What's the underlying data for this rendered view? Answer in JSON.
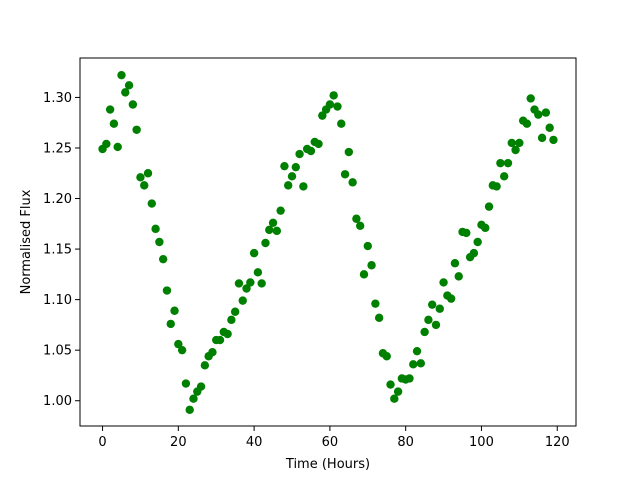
{
  "chart_data": {
    "type": "scatter",
    "xlabel": "Time (Hours)",
    "ylabel": "Normalised Flux",
    "color": "#008000",
    "x": [
      0,
      1,
      2,
      3,
      4,
      5,
      6,
      7,
      8,
      9,
      10,
      11,
      12,
      13,
      14,
      15,
      16,
      17,
      18,
      19,
      20,
      21,
      22,
      23,
      24,
      25,
      26,
      27,
      28,
      29,
      30,
      31,
      32,
      33,
      34,
      35,
      36,
      37,
      38,
      39,
      40,
      41,
      42,
      43,
      44,
      45,
      46,
      47,
      48,
      49,
      50,
      51,
      52,
      53,
      54,
      55,
      56,
      57,
      58,
      59,
      60,
      61,
      62,
      63,
      64,
      65,
      66,
      67,
      68,
      69,
      70,
      71,
      72,
      73,
      74,
      75,
      76,
      77,
      78,
      79,
      80,
      81,
      82,
      83,
      84,
      85,
      86,
      87,
      88,
      89,
      90,
      91,
      92,
      93,
      94,
      95,
      96,
      97,
      98,
      99,
      100,
      101,
      102,
      103,
      104,
      105,
      106,
      107,
      108,
      109,
      110,
      111,
      112,
      113,
      114,
      115,
      116,
      117,
      118,
      119
    ],
    "values": [
      1.249,
      1.254,
      1.288,
      1.274,
      1.251,
      1.322,
      1.305,
      1.312,
      1.293,
      1.268,
      1.221,
      1.213,
      1.225,
      1.195,
      1.17,
      1.157,
      1.14,
      1.109,
      1.076,
      1.089,
      1.056,
      1.05,
      1.017,
      0.991,
      1.002,
      1.009,
      1.014,
      1.035,
      1.044,
      1.048,
      1.06,
      1.06,
      1.068,
      1.066,
      1.08,
      1.088,
      1.116,
      1.099,
      1.111,
      1.117,
      1.146,
      1.127,
      1.116,
      1.156,
      1.169,
      1.176,
      1.168,
      1.188,
      1.232,
      1.213,
      1.222,
      1.231,
      1.244,
      1.212,
      1.249,
      1.247,
      1.256,
      1.254,
      1.282,
      1.288,
      1.293,
      1.302,
      1.291,
      1.274,
      1.224,
      1.246,
      1.216,
      1.18,
      1.173,
      1.125,
      1.153,
      1.134,
      1.096,
      1.082,
      1.047,
      1.044,
      1.016,
      1.002,
      1.009,
      1.022,
      1.021,
      1.022,
      1.036,
      1.049,
      1.037,
      1.068,
      1.08,
      1.095,
      1.075,
      1.091,
      1.117,
      1.104,
      1.101,
      1.136,
      1.123,
      1.167,
      1.166,
      1.142,
      1.146,
      1.157,
      1.174,
      1.171,
      1.192,
      1.213,
      1.212,
      1.235,
      1.222,
      1.235,
      1.255,
      1.248,
      1.255,
      1.277,
      1.274,
      1.299,
      1.288,
      1.283,
      1.26,
      1.285,
      1.27,
      1.258
    ],
    "xlim": [
      -5.95,
      124.95
    ],
    "xticks": [
      0,
      20,
      40,
      60,
      80,
      100,
      120
    ],
    "ylim": [
      0.975,
      1.339
    ],
    "yticks": [
      {
        "value": 1.0,
        "label": "1.00"
      },
      1.05,
      {
        "value": 1.1,
        "label": "1.10"
      },
      1.15,
      {
        "value": 1.2,
        "label": "1.20"
      },
      1.25,
      {
        "value": 1.3,
        "label": "1.30"
      }
    ]
  }
}
